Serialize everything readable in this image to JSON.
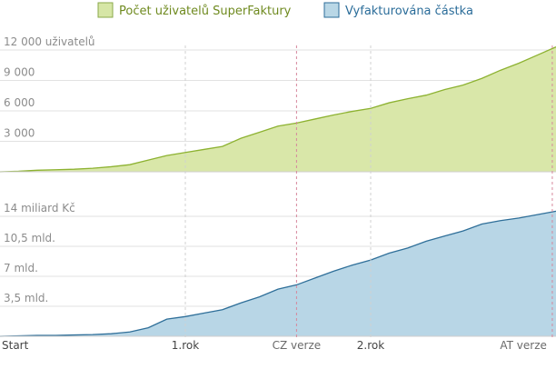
{
  "legend": [
    {
      "label": "Počet uživatelů SuperFaktury",
      "swatch_fill": "#d6e6a6",
      "swatch_stroke": "#8aa84a",
      "text_color": "#6f8a1f"
    },
    {
      "label": "Vyfakturována částka",
      "swatch_fill": "#b9d7e6",
      "swatch_stroke": "#2d6e9a",
      "text_color": "#2a6c99"
    }
  ],
  "chart_data": [
    {
      "type": "area",
      "series": [
        {
          "name": "Počet uživatelů SuperFaktury",
          "color": "#8db231",
          "fill": "#d9e7a9"
        }
      ],
      "ylim": [
        0,
        12000
      ],
      "yticks": [
        {
          "value": 3000,
          "label": "3 000"
        },
        {
          "value": 6000,
          "label": "6 000"
        },
        {
          "value": 9000,
          "label": "9 000"
        },
        {
          "value": 12000,
          "label": "12 000 uživatelů"
        }
      ],
      "grid": true,
      "xlim": [
        0,
        30
      ],
      "x": [
        0,
        1,
        2,
        3,
        4,
        5,
        6,
        7,
        8,
        9,
        10,
        11,
        12,
        13,
        14,
        15,
        16,
        17,
        18,
        19,
        20,
        21,
        22,
        23,
        24,
        25,
        26,
        27,
        28,
        29,
        30
      ],
      "values": [
        0,
        50,
        150,
        200,
        250,
        350,
        500,
        700,
        1150,
        1600,
        1900,
        2200,
        2500,
        3300,
        3900,
        4500,
        4800,
        5200,
        5600,
        5950,
        6250,
        6800,
        7200,
        7550,
        8100,
        8550,
        9200,
        10000,
        10700,
        11500,
        12300
      ]
    },
    {
      "type": "area",
      "series": [
        {
          "name": "Vyfakturována částka",
          "color": "#2f6f99",
          "fill": "#b8d6e6"
        }
      ],
      "ylim": [
        0,
        14
      ],
      "yticks": [
        {
          "value": 3.5,
          "label": "3,5 mld."
        },
        {
          "value": 7,
          "label": "7 mld."
        },
        {
          "value": 10.5,
          "label": "10,5 mld."
        },
        {
          "value": 14,
          "label": "14 miliard Kč"
        }
      ],
      "grid": true,
      "xlim": [
        0,
        30
      ],
      "x": [
        0,
        1,
        2,
        3,
        4,
        5,
        6,
        7,
        8,
        9,
        10,
        11,
        12,
        13,
        14,
        15,
        16,
        17,
        18,
        19,
        20,
        21,
        22,
        23,
        24,
        25,
        26,
        27,
        28,
        29,
        30
      ],
      "values": [
        0,
        0.05,
        0.1,
        0.1,
        0.15,
        0.2,
        0.3,
        0.5,
        1.0,
        2.0,
        2.3,
        2.7,
        3.1,
        3.9,
        4.6,
        5.5,
        6.0,
        6.8,
        7.6,
        8.3,
        8.9,
        9.7,
        10.3,
        11.1,
        11.7,
        12.3,
        13.1,
        13.5,
        13.8,
        14.2,
        14.6
      ]
    }
  ],
  "x_axis": {
    "ticks": [
      {
        "x": 0,
        "label": "Start"
      },
      {
        "x": 10,
        "label": "1.rok"
      },
      {
        "x": 16,
        "label": "CZ verze",
        "kind": "version"
      },
      {
        "x": 20,
        "label": "2.rok"
      },
      {
        "x": 29.8,
        "label": "AT verze",
        "kind": "version"
      }
    ],
    "year_line_color": "#d0d0d0",
    "version_line_color": "#d6879c"
  }
}
